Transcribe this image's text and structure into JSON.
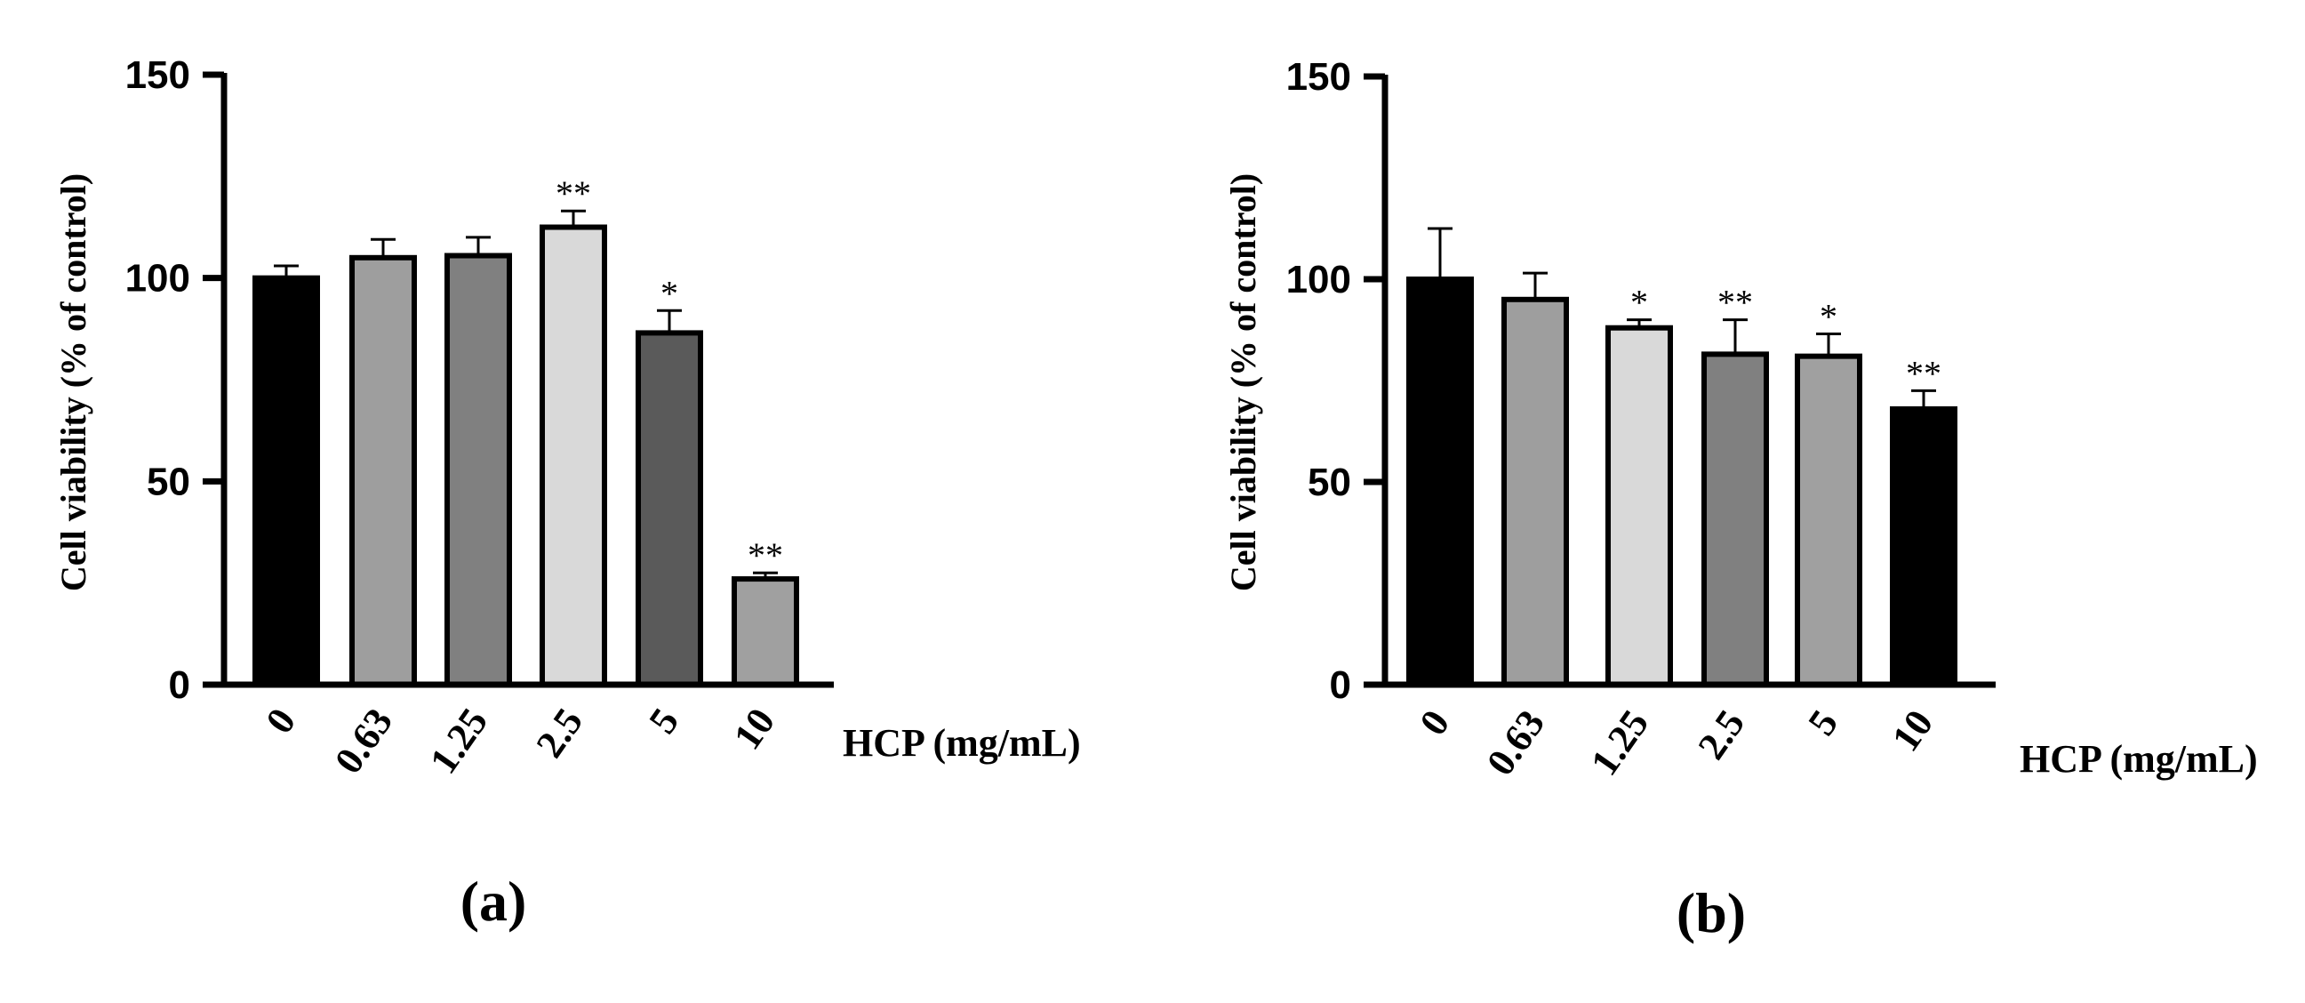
{
  "chart_data": [
    {
      "type": "bar",
      "panel_label": "(a)",
      "categories": [
        "0",
        "0.63",
        "1.25",
        "2.5",
        "5",
        "10"
      ],
      "values": [
        100,
        105,
        105.5,
        112.5,
        86.5,
        26
      ],
      "errors": [
        3,
        4.5,
        4.5,
        4,
        5.5,
        1.5
      ],
      "significance": [
        "",
        "",
        "",
        "**",
        "*",
        "**"
      ],
      "bar_colors": [
        "#000000",
        "#9e9e9e",
        "#808080",
        "#d9d9d9",
        "#5a5a5a",
        "#a0a0a0"
      ],
      "bar_edge_color": "#000000",
      "xlabel": "HCP (mg/mL)",
      "ylabel": "Cell viability (% of control)",
      "ylim": [
        0,
        150
      ],
      "yticks": [
        0,
        50,
        100,
        150
      ]
    },
    {
      "type": "bar",
      "panel_label": "(b)",
      "categories": [
        "0",
        "0.63",
        "1.25",
        "2.5",
        "5",
        "10"
      ],
      "values": [
        100,
        95,
        88,
        81.5,
        81,
        68
      ],
      "errors": [
        12.5,
        6.5,
        2,
        8.5,
        5.5,
        4.5
      ],
      "significance": [
        "",
        "",
        "*",
        "**",
        "*",
        "**"
      ],
      "bar_colors": [
        "#000000",
        "#9e9e9e",
        "#d9d9d9",
        "#808080",
        "#a0a0a0",
        "#000000"
      ],
      "bar_edge_color": "#000000",
      "xlabel": "HCP (mg/mL)",
      "ylabel": "Cell viability (% of control)",
      "ylim": [
        0,
        150
      ],
      "yticks": [
        0,
        50,
        100,
        150
      ]
    }
  ]
}
